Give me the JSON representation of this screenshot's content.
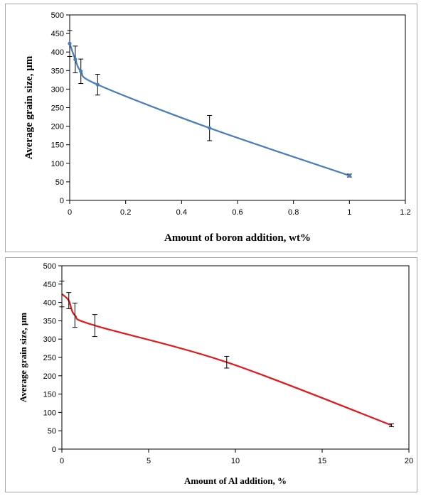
{
  "chart_data": [
    {
      "type": "line",
      "title": "",
      "xlabel": "Amount of boron addition, wt%",
      "ylabel": "Average grain size, µm",
      "xlim": [
        0,
        1.2
      ],
      "ylim": [
        0,
        500
      ],
      "xticks": [
        "0",
        "0.2",
        "0.4",
        "0.6",
        "0.8",
        "1",
        "1.2"
      ],
      "yticks": [
        "0",
        "50",
        "100",
        "150",
        "200",
        "250",
        "300",
        "350",
        "400",
        "450",
        "500"
      ],
      "grid": false,
      "markers": true,
      "line_color": "#4a7ebb",
      "x": [
        0,
        0.02,
        0.04,
        0.1,
        0.5,
        1.0
      ],
      "y": [
        423,
        380,
        348,
        312,
        195,
        67
      ],
      "error": [
        35,
        36,
        33,
        28,
        34,
        4
      ]
    },
    {
      "type": "line",
      "title": "",
      "xlabel": "Amount of Al addition, %",
      "ylabel": "Average grain size, µm",
      "xlim": [
        0,
        20
      ],
      "ylim": [
        0,
        500
      ],
      "xticks": [
        "0",
        "5",
        "10",
        "15",
        "20"
      ],
      "yticks": [
        "0",
        "50",
        "100",
        "150",
        "200",
        "250",
        "300",
        "350",
        "400",
        "450",
        "500"
      ],
      "grid": false,
      "markers": false,
      "line_color": "#e31a1c",
      "x": [
        0,
        0.4,
        0.75,
        1.9,
        9.5,
        19
      ],
      "y": [
        423,
        405,
        365,
        337,
        237,
        65
      ],
      "error": [
        35,
        22,
        33,
        30,
        16,
        4
      ]
    }
  ]
}
